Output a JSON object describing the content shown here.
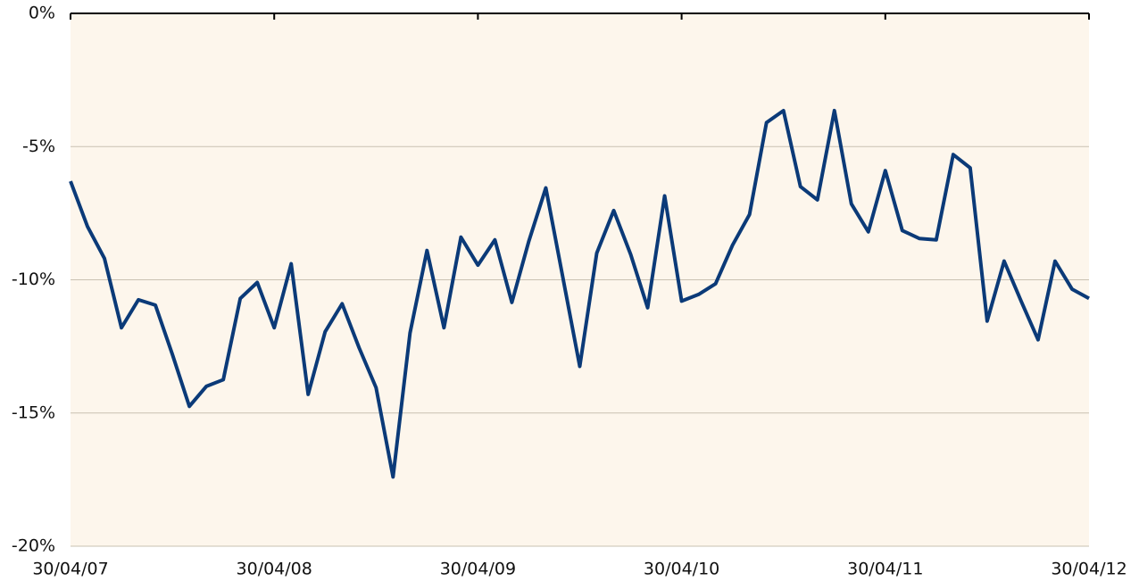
{
  "chart_data": {
    "type": "line",
    "categories": [
      "30/04/07",
      null,
      null,
      null,
      null,
      null,
      null,
      null,
      null,
      null,
      null,
      null,
      "30/04/08",
      null,
      null,
      null,
      null,
      null,
      null,
      null,
      null,
      null,
      null,
      null,
      "30/04/09",
      null,
      null,
      null,
      null,
      null,
      null,
      null,
      null,
      null,
      null,
      null,
      "30/04/10",
      null,
      null,
      null,
      null,
      null,
      null,
      null,
      null,
      null,
      null,
      null,
      "30/04/11",
      null,
      null,
      null,
      null,
      null,
      null,
      null,
      null,
      null,
      null,
      null,
      "30/04/12"
    ],
    "series": [
      {
        "color": "#0b3a78",
        "values": [
          -6.3,
          -8.0,
          -9.2,
          -11.8,
          -10.75,
          -10.95,
          -12.8,
          -14.75,
          -14.0,
          -13.75,
          -10.7,
          -10.1,
          -11.8,
          -9.4,
          -14.3,
          -11.95,
          -10.9,
          -12.55,
          -14.05,
          -17.4,
          -12.0,
          -8.9,
          -11.8,
          -8.4,
          -9.45,
          -8.5,
          -10.85,
          -8.55,
          -6.55,
          -9.9,
          -13.25,
          -9.0,
          -7.4,
          -9.05,
          -11.05,
          -6.85,
          -10.8,
          -10.55,
          -10.15,
          -8.7,
          -7.55,
          -4.1,
          -3.65,
          -6.5,
          -7.0,
          -3.65,
          -7.15,
          -8.2,
          -5.9,
          -8.15,
          -8.45,
          -8.5,
          -5.3,
          -5.8,
          -11.55,
          -9.3,
          -10.8,
          -12.25,
          -9.3,
          -10.35,
          -10.7
        ]
      }
    ],
    "ylim": [
      -20,
      0
    ],
    "yticks": [
      {
        "value": -20,
        "label": "-20%"
      },
      {
        "value": -15,
        "label": "-15%"
      },
      {
        "value": -10,
        "label": "-10%"
      },
      {
        "value": -5,
        "label": "-5%"
      },
      {
        "value": 0,
        "label": "0%"
      }
    ],
    "grid": true,
    "plot_background": "#fdf6ec"
  }
}
